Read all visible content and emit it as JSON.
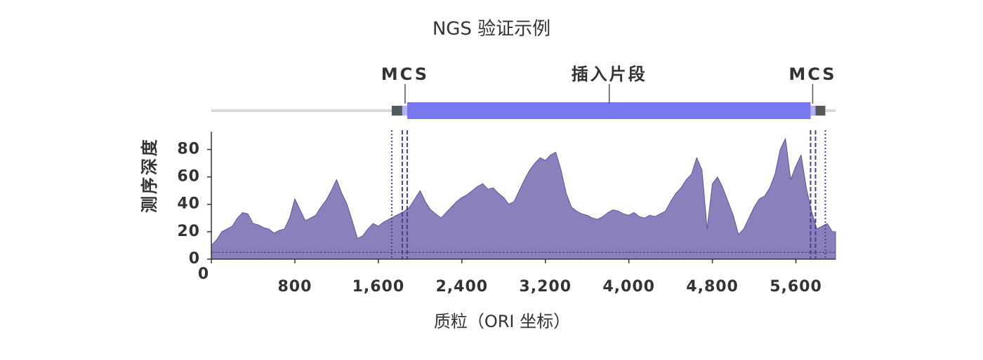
{
  "chart_data": {
    "type": "area",
    "title": "NGS 验证示例",
    "ylabel": "测序深度",
    "xlabel": "质粒（ORI 坐标）",
    "xlim": [
      0,
      5980
    ],
    "ylim": [
      0,
      93
    ],
    "xticks": [
      0,
      800,
      {
        "value": 1600,
        "label": "1,600"
      },
      {
        "value": 2400,
        "label": "2,400"
      },
      {
        "value": 3200,
        "label": "3,200"
      },
      {
        "value": 4000,
        "label": "4,000"
      },
      {
        "value": 4800,
        "label": "4,800"
      },
      {
        "value": 5600,
        "label": "5,600"
      }
    ],
    "yticks": [
      0,
      20,
      40,
      60,
      80
    ],
    "color": "#8a80bc",
    "line_color": "#5e529f",
    "threshold": 5,
    "x": [
      0,
      50,
      100,
      150,
      200,
      250,
      300,
      350,
      400,
      450,
      500,
      550,
      600,
      650,
      700,
      750,
      800,
      850,
      900,
      950,
      1000,
      1050,
      1100,
      1150,
      1200,
      1250,
      1300,
      1350,
      1400,
      1450,
      1500,
      1550,
      1600,
      1650,
      1700,
      1750,
      1800,
      1850,
      1900,
      1950,
      2000,
      2050,
      2100,
      2150,
      2200,
      2250,
      2300,
      2350,
      2400,
      2450,
      2500,
      2550,
      2600,
      2650,
      2700,
      2750,
      2800,
      2850,
      2900,
      2950,
      3000,
      3050,
      3100,
      3150,
      3200,
      3250,
      3300,
      3350,
      3400,
      3450,
      3500,
      3550,
      3600,
      3650,
      3700,
      3750,
      3800,
      3850,
      3900,
      3950,
      4000,
      4050,
      4100,
      4150,
      4200,
      4250,
      4300,
      4350,
      4400,
      4450,
      4500,
      4550,
      4600,
      4650,
      4700,
      4750,
      4800,
      4850,
      4900,
      4950,
      5000,
      5050,
      5100,
      5150,
      5200,
      5250,
      5300,
      5350,
      5400,
      5450,
      5500,
      5550,
      5600,
      5650,
      5700,
      5750,
      5800,
      5850,
      5900,
      5950
    ],
    "values": [
      10,
      14,
      20,
      22,
      24,
      30,
      34,
      33,
      26,
      25,
      23,
      22,
      19,
      21,
      22,
      30,
      44,
      36,
      28,
      30,
      32,
      38,
      43,
      50,
      58,
      48,
      40,
      28,
      15,
      17,
      22,
      26,
      24,
      27,
      29,
      31,
      33,
      35,
      38,
      44,
      50,
      42,
      36,
      33,
      30,
      34,
      38,
      42,
      45,
      47,
      50,
      53,
      55,
      51,
      52,
      48,
      45,
      40,
      42,
      50,
      58,
      65,
      70,
      74,
      72,
      76,
      78,
      65,
      48,
      38,
      35,
      33,
      32,
      30,
      29,
      31,
      34,
      36,
      35,
      33,
      32,
      34,
      31,
      30,
      32,
      31,
      33,
      35,
      42,
      48,
      52,
      58,
      62,
      74,
      65,
      22,
      55,
      60,
      52,
      42,
      32,
      18,
      22,
      30,
      38,
      44,
      46,
      52,
      62,
      80,
      88,
      58,
      68,
      76,
      52,
      35,
      22,
      24,
      26,
      20
    ],
    "map": {
      "segments": [
        {
          "start": 1728,
          "end": 1829,
          "color": "#555a60"
        },
        {
          "start": 1829,
          "end": 1876,
          "color": "#b3b0f5"
        },
        {
          "start": 1876,
          "end": 5741,
          "color": "#7777f0"
        },
        {
          "start": 5741,
          "end": 5788,
          "color": "#b3b0f5"
        },
        {
          "start": 5788,
          "end": 5882,
          "color": "#555a60"
        }
      ],
      "labels": [
        {
          "text": "MCS",
          "at": 1856
        },
        {
          "text": "插入片段",
          "at": 3812
        },
        {
          "text": "MCS",
          "at": 5761
        }
      ],
      "guides": [
        {
          "at": 1728,
          "style": "dotted"
        },
        {
          "at": 1829,
          "style": "dashed"
        },
        {
          "at": 1876,
          "style": "dashed"
        },
        {
          "at": 5741,
          "style": "dashed"
        },
        {
          "at": 5788,
          "style": "dashed"
        },
        {
          "at": 5882,
          "style": "dotted"
        }
      ]
    }
  }
}
